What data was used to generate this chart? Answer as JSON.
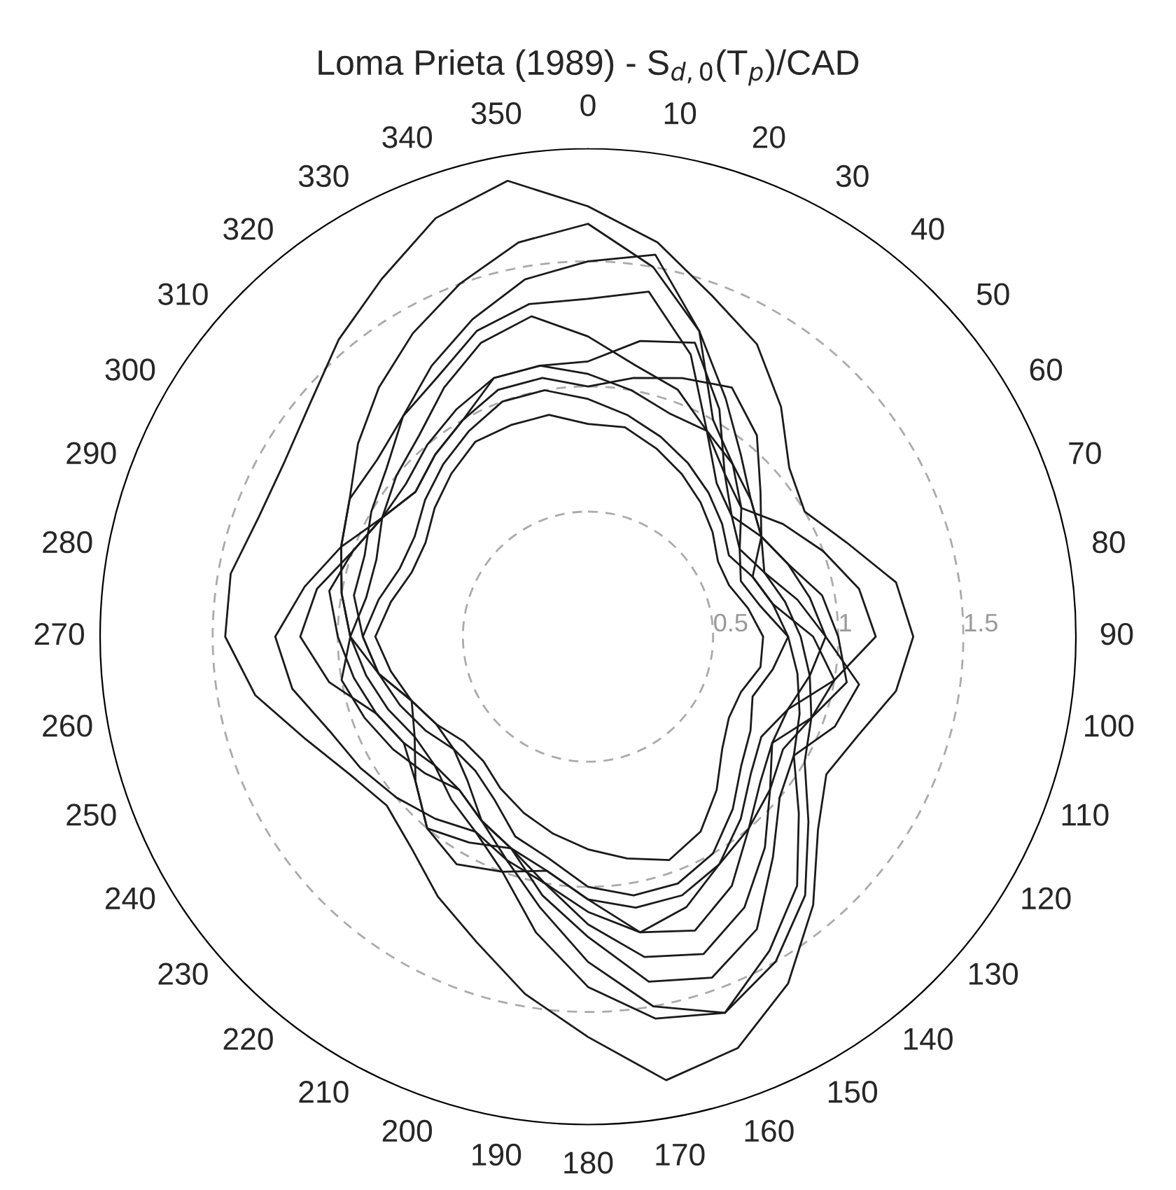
{
  "chart_data": {
    "type": "radar",
    "title": "Loma Prieta (1989) - S$_{d,0}$(T$_{p}$)/CAD",
    "categories": [
      "0",
      "10",
      "20",
      "30",
      "40",
      "50",
      "60",
      "70",
      "80",
      "90",
      "100",
      "110",
      "120",
      "130",
      "140",
      "150",
      "160",
      "170",
      "180",
      "190",
      "200",
      "210",
      "220",
      "230",
      "240",
      "250",
      "260",
      "270",
      "280",
      "290",
      "300",
      "310",
      "320",
      "330",
      "340",
      "350"
    ],
    "ylim": [
      0,
      1.95
    ],
    "yticks": [
      0.5,
      1,
      1.5
    ],
    "grid": true,
    "line_style": "solid",
    "marker": "none",
    "series": [
      {
        "color": "#1a1a1a",
        "values": [
          1.72,
          1.6,
          1.45,
          1.35,
          1.2,
          1.05,
          1.0,
          1.1,
          1.25,
          1.3,
          1.25,
          1.15,
          1.1,
          1.2,
          1.4,
          1.6,
          1.75,
          1.8,
          1.6,
          1.45,
          1.3,
          1.2,
          1.1,
          1.05,
          1.1,
          1.2,
          1.35,
          1.45,
          1.45,
          1.4,
          1.4,
          1.45,
          1.55,
          1.65,
          1.78,
          1.85
        ]
      },
      {
        "color": "#1a1a1a",
        "values": [
          1.65,
          1.5,
          1.3,
          1.1,
          0.95,
          0.85,
          0.8,
          0.75,
          0.8,
          0.85,
          0.9,
          0.95,
          1.0,
          1.15,
          1.35,
          1.5,
          1.6,
          1.55,
          1.4,
          1.2,
          1.0,
          0.9,
          0.85,
          0.8,
          0.8,
          0.85,
          0.9,
          0.95,
          1.0,
          1.05,
          1.1,
          1.2,
          1.3,
          1.4,
          1.5,
          1.6
        ]
      },
      {
        "color": "#1a1a1a",
        "values": [
          1.5,
          1.55,
          1.3,
          1.0,
          0.9,
          0.8,
          0.7,
          0.65,
          0.7,
          0.8,
          0.85,
          0.9,
          0.95,
          1.1,
          1.3,
          1.45,
          1.6,
          1.5,
          1.3,
          1.1,
          0.95,
          0.85,
          0.75,
          0.7,
          0.7,
          0.75,
          0.85,
          0.9,
          0.95,
          0.95,
          1.0,
          1.05,
          1.15,
          1.25,
          1.35,
          1.45
        ]
      },
      {
        "color": "#1a1a1a",
        "values": [
          1.2,
          1.1,
          1.05,
          0.95,
          0.85,
          0.75,
          0.7,
          0.75,
          0.85,
          0.95,
          0.9,
          0.85,
          0.85,
          0.95,
          1.1,
          1.25,
          1.35,
          1.3,
          1.15,
          1.0,
          0.9,
          0.85,
          0.8,
          0.85,
          0.9,
          0.95,
          1.0,
          0.95,
          0.9,
          0.9,
          0.95,
          1.0,
          1.05,
          1.15,
          1.25,
          1.3
        ]
      },
      {
        "color": "#1a1a1a",
        "values": [
          1.05,
          1.0,
          0.95,
          0.95,
          0.9,
          0.85,
          0.8,
          0.85,
          0.95,
          1.0,
          1.05,
          0.95,
          0.9,
          0.95,
          1.0,
          1.05,
          1.1,
          1.1,
          1.05,
          0.95,
          0.9,
          0.85,
          0.8,
          0.8,
          0.85,
          0.9,
          0.95,
          1.0,
          1.05,
          1.0,
          0.95,
          0.95,
          1.0,
          1.05,
          1.1,
          1.1
        ]
      },
      {
        "color": "#1a1a1a",
        "values": [
          0.95,
          0.9,
          0.85,
          0.8,
          0.75,
          0.7,
          0.65,
          0.7,
          0.75,
          0.8,
          0.75,
          0.7,
          0.75,
          0.8,
          0.9,
          1.0,
          1.05,
          1.05,
          1.0,
          0.9,
          0.85,
          0.75,
          0.7,
          0.7,
          0.75,
          0.8,
          0.85,
          0.9,
          0.85,
          0.8,
          0.8,
          0.85,
          0.9,
          0.95,
          1.0,
          1.0
        ]
      },
      {
        "color": "#1a1a1a",
        "values": [
          0.85,
          0.85,
          0.8,
          0.75,
          0.7,
          0.65,
          0.6,
          0.6,
          0.65,
          0.7,
          0.7,
          0.65,
          0.65,
          0.7,
          0.8,
          0.9,
          0.95,
          0.9,
          0.85,
          0.8,
          0.75,
          0.7,
          0.65,
          0.65,
          0.7,
          0.75,
          0.8,
          0.85,
          0.8,
          0.75,
          0.75,
          0.8,
          0.85,
          0.9,
          0.9,
          0.9
        ]
      },
      {
        "color": "#1a1a1a",
        "values": [
          1.0,
          1.05,
          1.1,
          1.15,
          1.05,
          0.9,
          0.8,
          0.7,
          0.75,
          0.9,
          1.0,
          0.95,
          0.85,
          0.9,
          1.0,
          1.15,
          1.25,
          1.2,
          1.05,
          0.95,
          1.0,
          1.05,
          1.0,
          0.9,
          0.85,
          0.9,
          1.05,
          1.15,
          1.1,
          1.0,
          0.95,
          0.9,
          0.95,
          1.0,
          1.05,
          1.05
        ]
      },
      {
        "color": "#1a1a1a",
        "values": [
          1.1,
          1.2,
          1.25,
          1.05,
          0.85,
          0.8,
          0.9,
          1.0,
          1.1,
          1.15,
          1.0,
          0.85,
          0.8,
          0.85,
          0.95,
          1.05,
          1.15,
          1.2,
          1.1,
          1.0,
          0.95,
          0.9,
          0.95,
          1.0,
          1.05,
          1.1,
          1.2,
          1.25,
          1.15,
          1.05,
          0.95,
          0.9,
          0.95,
          1.0,
          1.1,
          1.1
        ]
      },
      {
        "color": "#1a1a1a",
        "values": [
          1.35,
          1.4,
          1.2,
          0.95,
          0.8,
          0.75,
          0.8,
          0.85,
          0.9,
          0.95,
          1.1,
          1.05,
          0.95,
          1.0,
          1.15,
          1.35,
          1.45,
          1.4,
          1.2,
          1.05,
          0.9,
          0.95,
          1.0,
          0.9,
          0.8,
          0.75,
          0.85,
          0.95,
          1.0,
          1.05,
          1.1,
          1.1,
          1.15,
          1.2,
          1.3,
          1.35
        ]
      }
    ]
  }
}
